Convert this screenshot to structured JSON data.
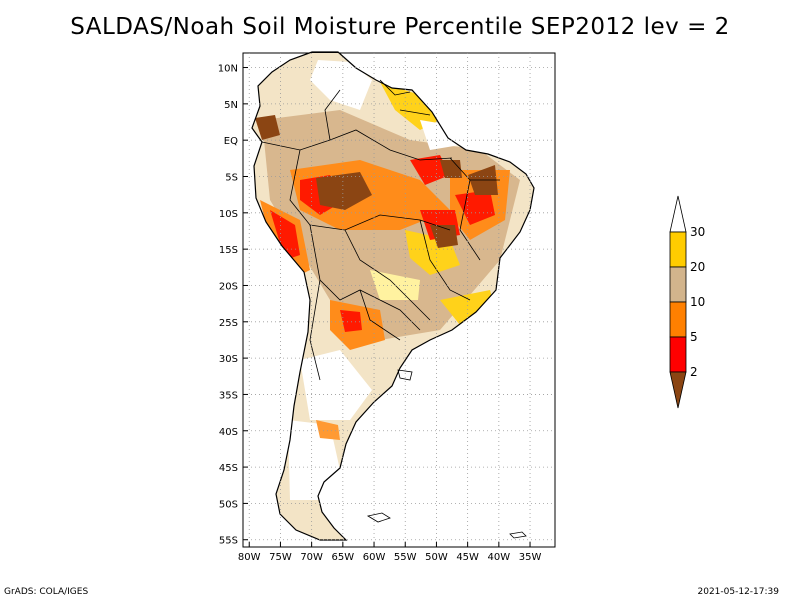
{
  "title": "SALDAS/Noah Soil Moisture Percentile SEP2012 lev = 2",
  "footer": {
    "left": "GrADS: COLA/IGES",
    "right": "2021-05-12-17:39"
  },
  "map": {
    "lat_labels": [
      "10N",
      "5N",
      "EQ",
      "5S",
      "10S",
      "15S",
      "20S",
      "25S",
      "30S",
      "35S",
      "40S",
      "45S",
      "50S",
      "55S"
    ],
    "lat_values": [
      10,
      5,
      0,
      -5,
      -10,
      -15,
      -20,
      -25,
      -30,
      -35,
      -40,
      -45,
      -50,
      -55
    ],
    "lon_labels": [
      "80W",
      "75W",
      "70W",
      "65W",
      "60W",
      "55W",
      "50W",
      "45W",
      "40W",
      "35W"
    ],
    "lon_values": [
      -80,
      -75,
      -70,
      -65,
      -60,
      -55,
      -50,
      -45,
      -40,
      -35
    ],
    "lon_range": [
      -81,
      -31
    ],
    "lat_range": [
      12,
      -56
    ],
    "grid": "dotted"
  },
  "colorbar": {
    "labels": [
      "30",
      "20",
      "10",
      "5",
      "2"
    ],
    "colors": [
      "#ffffff",
      "#ffcc00",
      "#d2b48c",
      "#ff8000",
      "#ff0000",
      "#8b4513"
    ],
    "classes": [
      "> 30",
      "20-30",
      "10-20",
      "5-10",
      "2-5",
      "< 2"
    ]
  }
}
